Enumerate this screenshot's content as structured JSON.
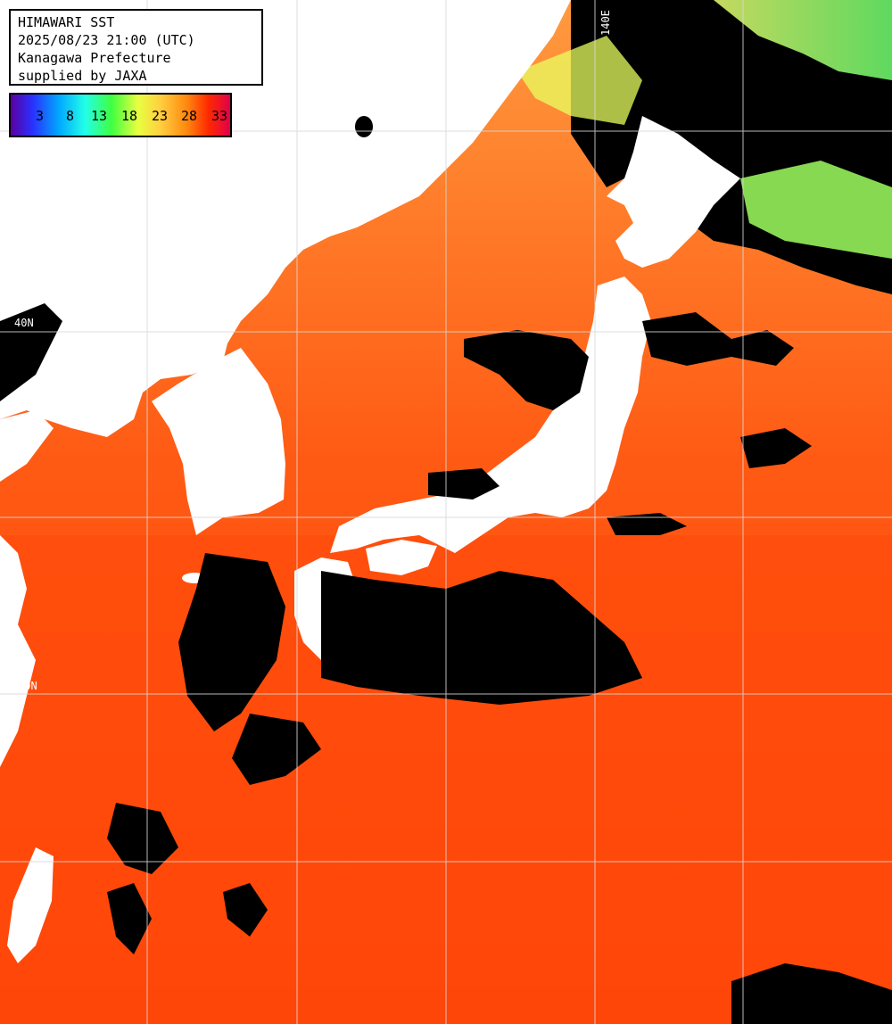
{
  "header": {
    "line1": "HIMAWARI SST",
    "line2": "2025/08/23 21:00 (UTC)",
    "line3": "Kanagawa Prefecture",
    "line4": "supplied by JAXA"
  },
  "legend": {
    "labels": [
      "3",
      "8",
      "13",
      "18",
      "23",
      "28",
      "33"
    ],
    "colors": [
      "#5a00a0",
      "#2a30ff",
      "#00a8ff",
      "#22ffe8",
      "#40ff40",
      "#e8ff40",
      "#ffd040",
      "#ff8a10",
      "#ff2a00",
      "#e0004a"
    ]
  },
  "grid": {
    "labels": [
      "140E",
      "40N",
      "30N"
    ]
  },
  "colors": {
    "sea_warm": "#ff4a0a",
    "sea_cool": "#ff8a30",
    "land": "#ffffff",
    "cloud": "#000000",
    "grid": "#d8d8d8"
  }
}
